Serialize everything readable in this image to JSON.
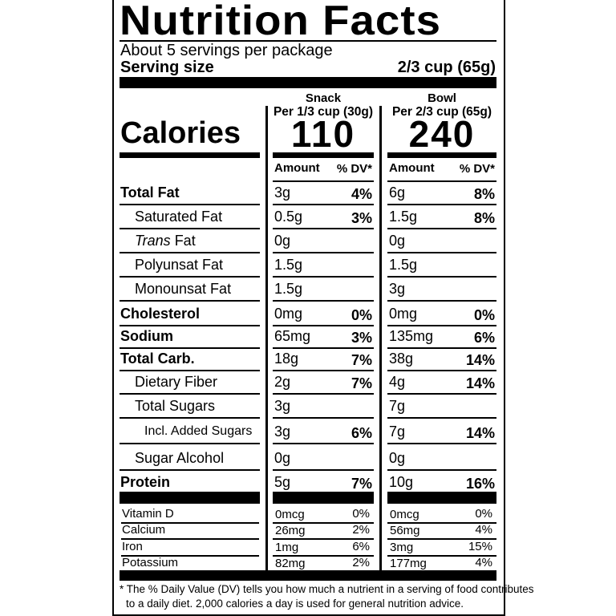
{
  "title": "Nutrition Facts",
  "servings_per_package": "About 5 servings per package",
  "serving_size_label": "Serving size",
  "serving_size_value": "2/3 cup (65g)",
  "calories_label": "Calories",
  "columns": [
    {
      "name": "Snack",
      "per": "Per 1/3 cup (30g)",
      "calories": "110",
      "amount_header": "Amount",
      "dv_header": "% DV*"
    },
    {
      "name": "Bowl",
      "per": "Per 2/3 cup (65g)",
      "calories": "240",
      "amount_header": "Amount",
      "dv_header": "% DV*"
    }
  ],
  "nutrients": [
    {
      "label": "Total Fat",
      "bold": true,
      "indent": 0,
      "snack": [
        "3g",
        "4%"
      ],
      "bowl": [
        "6g",
        "8%"
      ]
    },
    {
      "label": "Saturated Fat",
      "bold": false,
      "indent": 1,
      "snack": [
        "0.5g",
        "3%"
      ],
      "bowl": [
        "1.5g",
        "8%"
      ]
    },
    {
      "label": "Trans Fat",
      "bold": false,
      "indent": 1,
      "italic_prefix": "Trans",
      "snack": [
        "0g",
        ""
      ],
      "bowl": [
        "0g",
        ""
      ]
    },
    {
      "label": "Polyunsat Fat",
      "bold": false,
      "indent": 1,
      "snack": [
        "1.5g",
        ""
      ],
      "bowl": [
        "1.5g",
        ""
      ]
    },
    {
      "label": "Monounsat Fat",
      "bold": false,
      "indent": 1,
      "snack": [
        "1.5g",
        ""
      ],
      "bowl": [
        "3g",
        ""
      ]
    },
    {
      "label": "Cholesterol",
      "bold": true,
      "indent": 0,
      "snack": [
        "0mg",
        "0%"
      ],
      "bowl": [
        "0mg",
        "0%"
      ]
    },
    {
      "label": "Sodium",
      "bold": true,
      "indent": 0,
      "snack": [
        "65mg",
        "3%"
      ],
      "bowl": [
        "135mg",
        "6%"
      ]
    },
    {
      "label": "Total Carb.",
      "bold": true,
      "indent": 0,
      "snack": [
        "18g",
        "7%"
      ],
      "bowl": [
        "38g",
        "14%"
      ]
    },
    {
      "label": "Dietary Fiber",
      "bold": false,
      "indent": 1,
      "snack": [
        "2g",
        "7%"
      ],
      "bowl": [
        "4g",
        "14%"
      ]
    },
    {
      "label": "Total Sugars",
      "bold": false,
      "indent": 1,
      "snack": [
        "3g",
        ""
      ],
      "bowl": [
        "7g",
        ""
      ]
    },
    {
      "label": "Incl. Added Sugars",
      "bold": false,
      "indent": 2,
      "snack": [
        "3g",
        "6%"
      ],
      "bowl": [
        "7g",
        "14%"
      ]
    },
    {
      "label": "Sugar Alcohol",
      "bold": false,
      "indent": 1,
      "snack": [
        "0g",
        ""
      ],
      "bowl": [
        "0g",
        ""
      ]
    },
    {
      "label": "Protein",
      "bold": true,
      "indent": 0,
      "snack": [
        "5g",
        "7%"
      ],
      "bowl": [
        "10g",
        "16%"
      ]
    }
  ],
  "vitamins": [
    {
      "label": "Vitamin D",
      "snack": [
        "0mcg",
        "0%"
      ],
      "bowl": [
        "0mcg",
        "0%"
      ]
    },
    {
      "label": "Calcium",
      "snack": [
        "26mg",
        "2%"
      ],
      "bowl": [
        "56mg",
        "4%"
      ]
    },
    {
      "label": "Iron",
      "snack": [
        "1mg",
        "6%"
      ],
      "bowl": [
        "3mg",
        "15%"
      ]
    },
    {
      "label": "Potassium",
      "snack": [
        "82mg",
        "2%"
      ],
      "bowl": [
        "177mg",
        "4%"
      ]
    }
  ],
  "footnote": [
    "* The % Daily Value (DV) tells you how much a nutrient in a serving of food contributes",
    "to a daily diet. 2,000 calories a day is used for general nutrition advice."
  ]
}
